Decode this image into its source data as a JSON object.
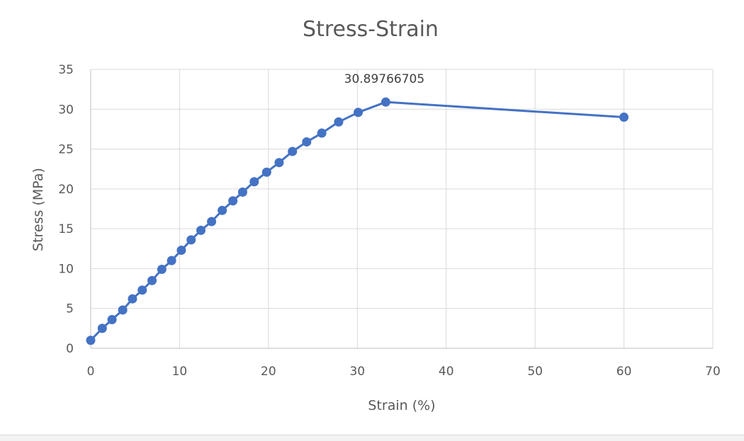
{
  "chart_data": {
    "type": "scatter",
    "title": "Stress-Strain",
    "xlabel": "Strain (%)",
    "ylabel": "Stress (MPa)",
    "xlim": [
      0,
      70
    ],
    "ylim": [
      0,
      35
    ],
    "x_ticks": [
      0,
      10,
      20,
      30,
      40,
      50,
      60,
      70
    ],
    "y_ticks": [
      0,
      5,
      10,
      15,
      20,
      25,
      30,
      35
    ],
    "grid": true,
    "lines_connected": true,
    "series_color": "#4472c4",
    "series": [
      {
        "x": [
          0,
          1.3,
          2.4,
          3.6,
          4.7,
          5.8,
          6.9,
          8.0,
          9.1,
          10.2,
          11.3,
          12.4,
          13.6,
          14.8,
          16.0,
          17.1,
          18.4,
          19.8,
          21.2,
          22.7,
          24.3,
          26.0,
          27.9,
          30.1,
          33.2,
          60.0
        ],
        "y": [
          1.0,
          2.5,
          3.6,
          4.8,
          6.2,
          7.3,
          8.5,
          9.9,
          11.0,
          12.3,
          13.6,
          14.8,
          15.9,
          17.3,
          18.5,
          19.6,
          20.9,
          22.1,
          23.3,
          24.7,
          25.9,
          27.0,
          28.4,
          29.6,
          30.89766705,
          29.0
        ]
      }
    ],
    "annotations": [
      {
        "label": "30.89766705",
        "point_index": 24
      }
    ]
  }
}
